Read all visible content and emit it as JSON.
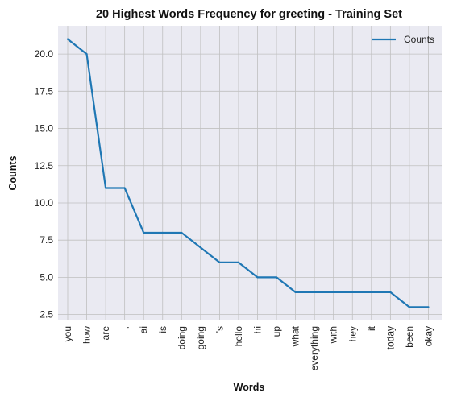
{
  "chart_data": {
    "type": "line",
    "title": "20 Highest Words Frequency for greeting - Training Set",
    "xlabel": "Words",
    "ylabel": "Counts",
    "categories": [
      "you",
      "how",
      "are",
      ",",
      "ai",
      "is",
      "doing",
      "going",
      "'s",
      "hello",
      "hi",
      "up",
      "what",
      "everything",
      "with",
      "hey",
      "it",
      "today",
      "been",
      "okay"
    ],
    "series": [
      {
        "name": "Counts",
        "values": [
          21,
          20,
          11,
          11,
          8,
          8,
          8,
          7,
          6,
          6,
          5,
          5,
          4,
          4,
          4,
          4,
          4,
          4,
          3,
          3
        ],
        "color": "#1f77b4"
      }
    ],
    "ylim": [
      2.1,
      21.9
    ],
    "yticks": [
      "2.5",
      "5.0",
      "7.5",
      "10.0",
      "12.5",
      "15.0",
      "17.5",
      "20.0"
    ],
    "grid": true,
    "legend_position": "top-right"
  },
  "colors": {
    "plot_background": "#eaeaf2",
    "grid": "#c0c0c0",
    "line": "#1f77b4"
  }
}
